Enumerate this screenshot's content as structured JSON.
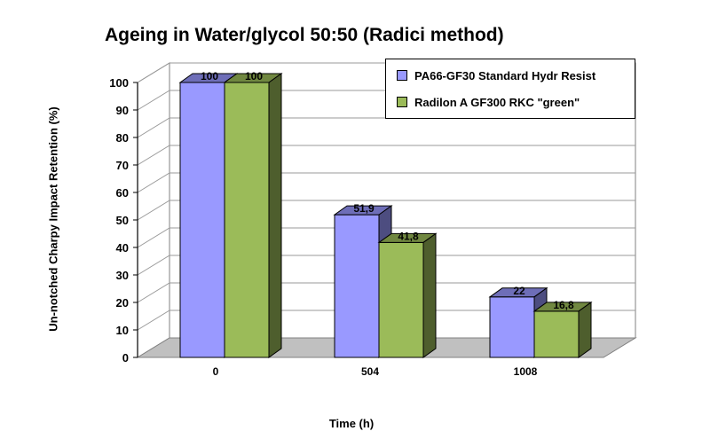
{
  "chart_data": {
    "type": "bar",
    "title": "Ageing in Water/glycol 50:50 (Radici method)",
    "xlabel": "Time (h)",
    "ylabel": "Un-notched Charpy Impact Retention (%)",
    "ylim": [
      0,
      100
    ],
    "yticks": [
      "0",
      "10",
      "20",
      "30",
      "40",
      "50",
      "60",
      "70",
      "80",
      "90",
      "100"
    ],
    "categories": [
      "0",
      "504",
      "1008"
    ],
    "series": [
      {
        "name": "PA66-GF30 Standard Hydr Resist",
        "values": [
          100,
          51.9,
          22
        ],
        "labels": [
          "100",
          "51,9",
          "22"
        ],
        "color": "#9999ff"
      },
      {
        "name": "Radilon A GF300 RKC \"green\"",
        "values": [
          100,
          41.8,
          16.8
        ],
        "labels": [
          "100",
          "41,8",
          "16,8"
        ],
        "color": "#9bbb59"
      }
    ],
    "grid": true,
    "legend_position": "top-right",
    "style": "3d-clustered-bar"
  }
}
